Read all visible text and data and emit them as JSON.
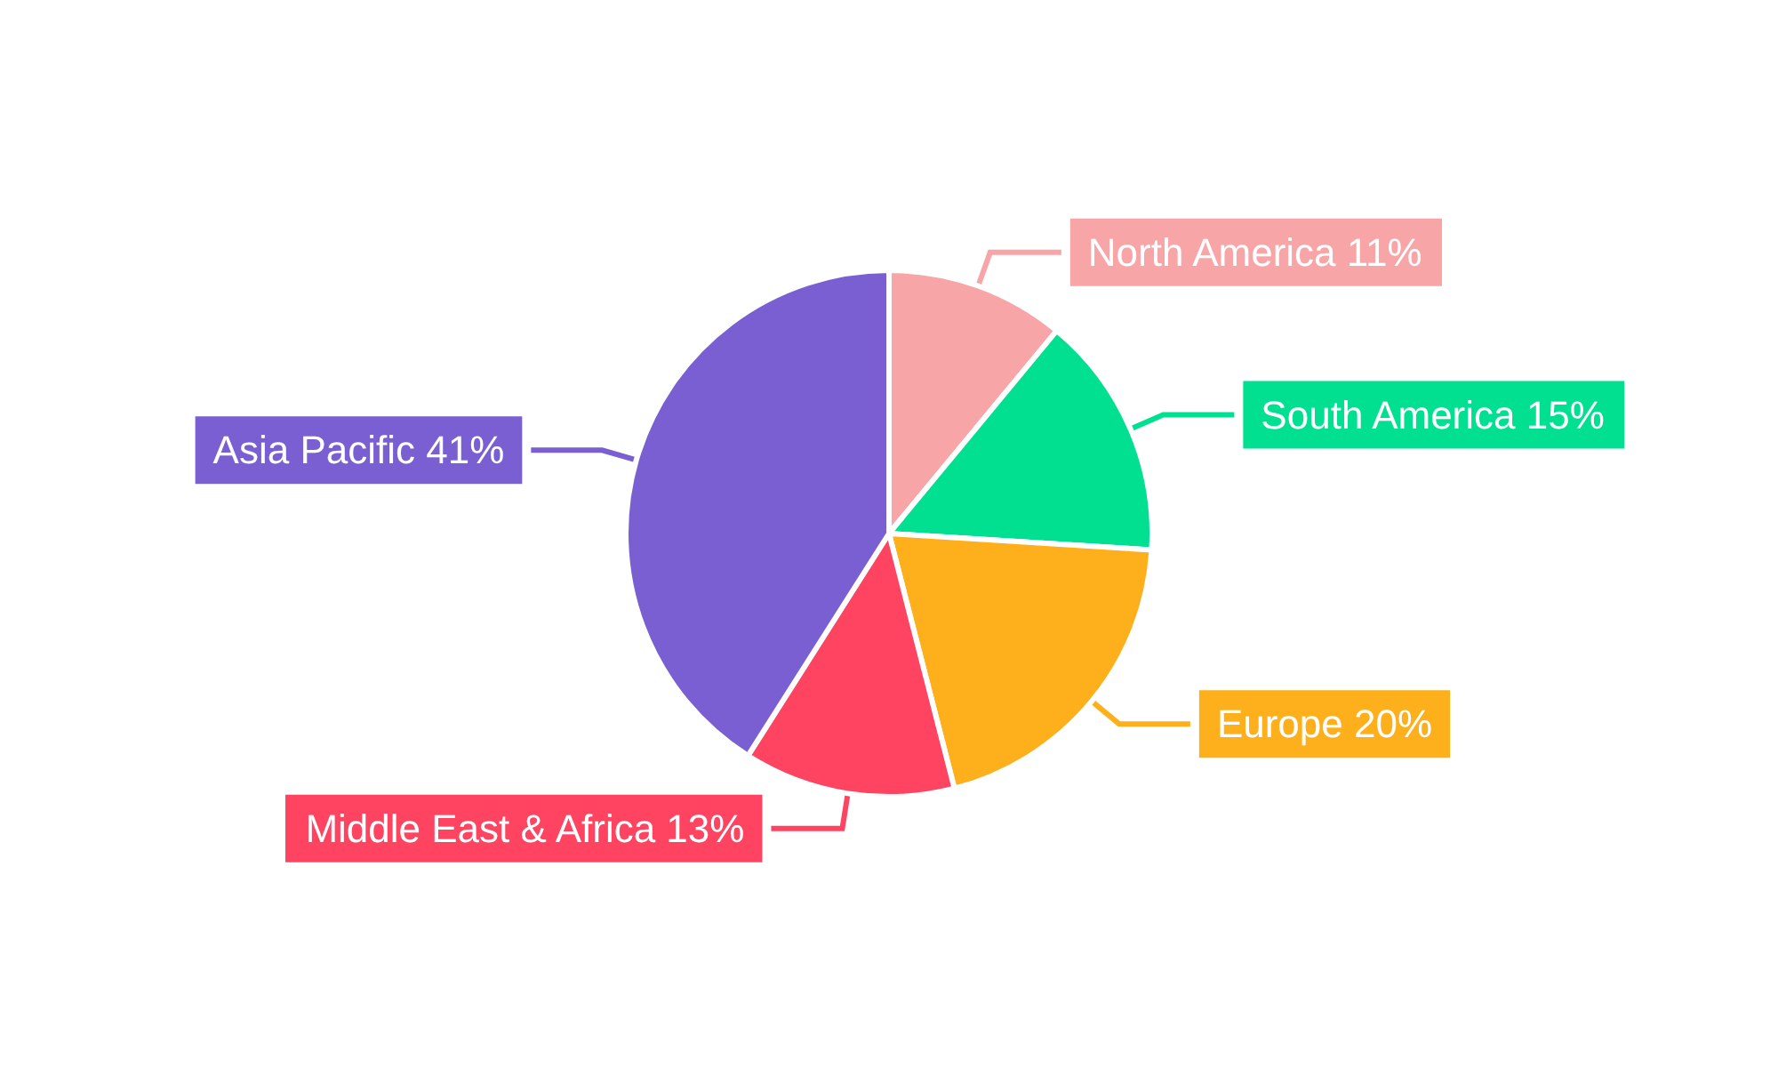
{
  "chart_data": {
    "type": "pie",
    "categories": [
      "North America",
      "South America",
      "Europe",
      "Middle East & Africa",
      "Asia Pacific"
    ],
    "values": [
      11,
      15,
      20,
      13,
      41
    ],
    "value_labels": [
      "11%",
      "15%",
      "20%",
      "13%",
      "41%"
    ],
    "colors": [
      "#f8a5a8",
      "#00e090",
      "#fdb01b",
      "#fe4461",
      "#7a5fd2"
    ],
    "legend": false
  }
}
